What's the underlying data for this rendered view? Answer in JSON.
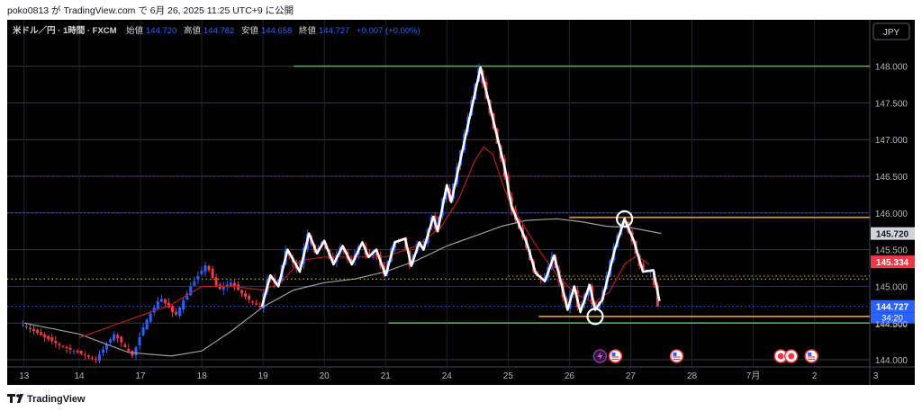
{
  "header": {
    "publish_line": "poko0813 が TradingView.com で 6月 26, 2025 11:25 UTC+9 に公開",
    "symbol": "米ドル／円 · 1時間 · FXCM",
    "open_label": "始値",
    "open": "144.720",
    "high_label": "高値",
    "high": "144.782",
    "low_label": "安値",
    "low": "144.658",
    "close_label": "終値",
    "close": "144.727",
    "change": "+0.007 (+0.00%)"
  },
  "currency_button": "JPY",
  "footer": {
    "brand": "TradingView"
  },
  "chart_data": {
    "type": "candlestick",
    "ylim": [
      143.99,
      148.08
    ],
    "y_ticks": [
      "144.000",
      "144.500",
      "145.000",
      "145.500",
      "146.000",
      "146.500",
      "147.000",
      "147.500",
      "148.000"
    ],
    "x_ticks": [
      {
        "label": "13",
        "x": -0.9
      },
      {
        "label": "14",
        "x": 0
      },
      {
        "label": "17",
        "x": 1
      },
      {
        "label": "18",
        "x": 2
      },
      {
        "label": "19",
        "x": 3
      },
      {
        "label": "20",
        "x": 4
      },
      {
        "label": "21",
        "x": 5
      },
      {
        "label": "24",
        "x": 6
      },
      {
        "label": "25",
        "x": 7
      },
      {
        "label": "26",
        "x": 8
      },
      {
        "label": "27",
        "x": 9
      },
      {
        "label": "28",
        "x": 10
      },
      {
        "label": "7月",
        "x": 11
      },
      {
        "label": "2",
        "x": 12
      },
      {
        "label": "3",
        "x": 13
      }
    ],
    "price_labels": [
      {
        "value": 145.72,
        "text": "145.720",
        "bg": "#d1d4dc",
        "fg": "#131722"
      },
      {
        "value": 145.334,
        "text": "145.334",
        "bg": "#f23645",
        "fg": "#ffffff"
      },
      {
        "value": 144.727,
        "text": "144.727",
        "bg": "#2962ff",
        "fg": "#ffffff"
      }
    ],
    "countdown": "34:20",
    "overlay_price_tail": "144.500",
    "horizontal_lines": [
      {
        "name": "green-top",
        "value": 148.0,
        "x_from": 3.5,
        "color": "#4caf50",
        "style": "solid"
      },
      {
        "name": "purple-dotted",
        "value": 146.5,
        "x_from": -1,
        "color": "#9c27b0",
        "style": "dotted"
      },
      {
        "name": "blue-dotted",
        "value": 146.0,
        "x_from": -1,
        "color": "#2962ff",
        "style": "dotted"
      },
      {
        "name": "orange-right",
        "value": 145.94,
        "x_from": 8.0,
        "color": "#ff9800",
        "style": "solid"
      },
      {
        "name": "yellow-dotted",
        "value": 145.1,
        "x_from": -1,
        "color": "#cddc39",
        "style": "dotted"
      },
      {
        "name": "orange-dotted",
        "value": 145.14,
        "x_from": 7.0,
        "color": "#ff9800",
        "style": "dotted"
      },
      {
        "name": "blue-last",
        "value": 144.727,
        "x_from": -1,
        "color": "#2962ff",
        "style": "dotted"
      },
      {
        "name": "orange-low",
        "value": 144.59,
        "x_from": 7.5,
        "color": "#ff9800",
        "style": "solid"
      },
      {
        "name": "green-low",
        "value": 144.5,
        "x_from": 5.05,
        "color": "#4caf50",
        "style": "solid"
      }
    ],
    "zigzag": [
      {
        "x": 2.98,
        "y": 144.72
      },
      {
        "x": 3.12,
        "y": 145.15
      },
      {
        "x": 3.25,
        "y": 145.0
      },
      {
        "x": 3.4,
        "y": 145.5
      },
      {
        "x": 3.6,
        "y": 145.2
      },
      {
        "x": 3.75,
        "y": 145.72
      },
      {
        "x": 3.88,
        "y": 145.45
      },
      {
        "x": 4.0,
        "y": 145.62
      },
      {
        "x": 4.15,
        "y": 145.3
      },
      {
        "x": 4.3,
        "y": 145.55
      },
      {
        "x": 4.45,
        "y": 145.3
      },
      {
        "x": 4.62,
        "y": 145.6
      },
      {
        "x": 4.72,
        "y": 145.4
      },
      {
        "x": 4.85,
        "y": 145.5
      },
      {
        "x": 5.0,
        "y": 145.15
      },
      {
        "x": 5.15,
        "y": 145.6
      },
      {
        "x": 5.32,
        "y": 145.65
      },
      {
        "x": 5.42,
        "y": 145.28
      },
      {
        "x": 5.55,
        "y": 145.6
      },
      {
        "x": 5.62,
        "y": 145.5
      },
      {
        "x": 5.78,
        "y": 145.95
      },
      {
        "x": 5.85,
        "y": 145.75
      },
      {
        "x": 6.0,
        "y": 146.38
      },
      {
        "x": 6.07,
        "y": 146.15
      },
      {
        "x": 6.55,
        "y": 147.98
      },
      {
        "x": 6.95,
        "y": 146.6
      },
      {
        "x": 7.05,
        "y": 146.1
      },
      {
        "x": 7.3,
        "y": 145.6
      },
      {
        "x": 7.45,
        "y": 145.18
      },
      {
        "x": 7.6,
        "y": 145.07
      },
      {
        "x": 7.75,
        "y": 145.42
      },
      {
        "x": 7.88,
        "y": 145.0
      },
      {
        "x": 7.97,
        "y": 144.68
      },
      {
        "x": 8.08,
        "y": 145.0
      },
      {
        "x": 8.18,
        "y": 144.65
      },
      {
        "x": 8.33,
        "y": 145.02
      },
      {
        "x": 8.42,
        "y": 144.68
      },
      {
        "x": 8.54,
        "y": 144.82
      },
      {
        "x": 8.74,
        "y": 145.5
      },
      {
        "x": 8.9,
        "y": 145.92
      },
      {
        "x": 9.05,
        "y": 145.62
      },
      {
        "x": 9.2,
        "y": 145.2
      },
      {
        "x": 9.37,
        "y": 145.22
      },
      {
        "x": 9.47,
        "y": 144.8
      }
    ],
    "circles": [
      {
        "x": 8.42,
        "y": 144.59
      },
      {
        "x": 8.9,
        "y": 145.92
      }
    ],
    "event_icons": [
      {
        "x": 8.5,
        "kind": "lightning"
      },
      {
        "x": 8.75,
        "kind": "flag"
      },
      {
        "x": 9.75,
        "kind": "flag"
      },
      {
        "x": 11.45,
        "kind": "target"
      },
      {
        "x": 11.62,
        "kind": "target"
      },
      {
        "x": 11.95,
        "kind": "flag"
      }
    ],
    "ma_fast": [
      {
        "x": 0.0,
        "y": 144.3
      },
      {
        "x": 0.5,
        "y": 144.45
      },
      {
        "x": 1.0,
        "y": 144.6
      },
      {
        "x": 1.5,
        "y": 144.75
      },
      {
        "x": 2.0,
        "y": 145.0
      },
      {
        "x": 2.5,
        "y": 145.0
      },
      {
        "x": 3.0,
        "y": 144.95
      },
      {
        "x": 3.3,
        "y": 145.05
      },
      {
        "x": 3.6,
        "y": 145.35
      },
      {
        "x": 4.0,
        "y": 145.4
      },
      {
        "x": 4.5,
        "y": 145.4
      },
      {
        "x": 5.0,
        "y": 145.4
      },
      {
        "x": 5.5,
        "y": 145.55
      },
      {
        "x": 5.9,
        "y": 145.8
      },
      {
        "x": 6.2,
        "y": 146.2
      },
      {
        "x": 6.45,
        "y": 146.7
      },
      {
        "x": 6.6,
        "y": 146.9
      },
      {
        "x": 6.75,
        "y": 146.8
      },
      {
        "x": 6.95,
        "y": 146.3
      },
      {
        "x": 7.2,
        "y": 145.9
      },
      {
        "x": 7.5,
        "y": 145.5
      },
      {
        "x": 7.8,
        "y": 145.15
      },
      {
        "x": 8.1,
        "y": 144.9
      },
      {
        "x": 8.4,
        "y": 144.78
      },
      {
        "x": 8.65,
        "y": 144.92
      },
      {
        "x": 8.9,
        "y": 145.3
      },
      {
        "x": 9.1,
        "y": 145.42
      },
      {
        "x": 9.3,
        "y": 145.3
      }
    ],
    "ma_slow": [
      {
        "x": -0.9,
        "y": 144.5
      },
      {
        "x": 0.0,
        "y": 144.35
      },
      {
        "x": 0.8,
        "y": 144.1
      },
      {
        "x": 1.5,
        "y": 144.05
      },
      {
        "x": 2.0,
        "y": 144.12
      },
      {
        "x": 2.5,
        "y": 144.4
      },
      {
        "x": 3.0,
        "y": 144.72
      },
      {
        "x": 3.5,
        "y": 144.95
      },
      {
        "x": 4.0,
        "y": 145.05
      },
      {
        "x": 4.5,
        "y": 145.1
      },
      {
        "x": 5.0,
        "y": 145.2
      },
      {
        "x": 5.5,
        "y": 145.35
      },
      {
        "x": 6.0,
        "y": 145.55
      },
      {
        "x": 6.5,
        "y": 145.7
      },
      {
        "x": 6.9,
        "y": 145.82
      },
      {
        "x": 7.3,
        "y": 145.9
      },
      {
        "x": 7.8,
        "y": 145.92
      },
      {
        "x": 8.2,
        "y": 145.88
      },
      {
        "x": 8.6,
        "y": 145.82
      },
      {
        "x": 9.0,
        "y": 145.8
      },
      {
        "x": 9.5,
        "y": 145.72
      }
    ],
    "price_path": [
      {
        "x": -0.95,
        "y": 144.5
      },
      {
        "x": -0.3,
        "y": 144.2
      },
      {
        "x": 0.0,
        "y": 144.1
      },
      {
        "x": 0.3,
        "y": 144.0
      },
      {
        "x": 0.6,
        "y": 144.35
      },
      {
        "x": 0.9,
        "y": 144.05
      },
      {
        "x": 1.1,
        "y": 144.5
      },
      {
        "x": 1.35,
        "y": 144.85
      },
      {
        "x": 1.6,
        "y": 144.6
      },
      {
        "x": 1.85,
        "y": 145.0
      },
      {
        "x": 2.1,
        "y": 145.3
      },
      {
        "x": 2.3,
        "y": 144.95
      },
      {
        "x": 2.5,
        "y": 145.05
      },
      {
        "x": 2.75,
        "y": 144.85
      },
      {
        "x": 2.98,
        "y": 144.72
      },
      {
        "x": 3.12,
        "y": 145.15
      },
      {
        "x": 3.25,
        "y": 145.0
      },
      {
        "x": 3.4,
        "y": 145.5
      },
      {
        "x": 3.6,
        "y": 145.2
      },
      {
        "x": 3.75,
        "y": 145.72
      },
      {
        "x": 3.88,
        "y": 145.45
      },
      {
        "x": 4.0,
        "y": 145.62
      },
      {
        "x": 4.15,
        "y": 145.3
      },
      {
        "x": 4.3,
        "y": 145.55
      },
      {
        "x": 4.45,
        "y": 145.3
      },
      {
        "x": 4.62,
        "y": 145.6
      },
      {
        "x": 4.72,
        "y": 145.4
      },
      {
        "x": 4.85,
        "y": 145.5
      },
      {
        "x": 5.0,
        "y": 145.15
      },
      {
        "x": 5.15,
        "y": 145.6
      },
      {
        "x": 5.32,
        "y": 145.65
      },
      {
        "x": 5.42,
        "y": 145.28
      },
      {
        "x": 5.55,
        "y": 145.6
      },
      {
        "x": 5.62,
        "y": 145.5
      },
      {
        "x": 5.78,
        "y": 145.95
      },
      {
        "x": 5.85,
        "y": 145.75
      },
      {
        "x": 6.0,
        "y": 146.38
      },
      {
        "x": 6.07,
        "y": 146.15
      },
      {
        "x": 6.55,
        "y": 147.98
      },
      {
        "x": 6.95,
        "y": 146.6
      },
      {
        "x": 7.05,
        "y": 146.1
      },
      {
        "x": 7.3,
        "y": 145.6
      },
      {
        "x": 7.45,
        "y": 145.18
      },
      {
        "x": 7.6,
        "y": 145.07
      },
      {
        "x": 7.75,
        "y": 145.42
      },
      {
        "x": 7.88,
        "y": 145.0
      },
      {
        "x": 7.97,
        "y": 144.68
      },
      {
        "x": 8.08,
        "y": 145.0
      },
      {
        "x": 8.18,
        "y": 144.65
      },
      {
        "x": 8.33,
        "y": 145.02
      },
      {
        "x": 8.42,
        "y": 144.68
      },
      {
        "x": 8.54,
        "y": 144.82
      },
      {
        "x": 8.74,
        "y": 145.5
      },
      {
        "x": 8.9,
        "y": 145.92
      },
      {
        "x": 9.05,
        "y": 145.62
      },
      {
        "x": 9.2,
        "y": 145.2
      },
      {
        "x": 9.37,
        "y": 145.22
      },
      {
        "x": 9.47,
        "y": 144.73
      }
    ],
    "candle_count": 175,
    "colors": {
      "background": "#000000",
      "grid": "#2a2e39",
      "text": "#b2b5be",
      "up": "#2962ff",
      "down": "#f23645",
      "zigzag": "#ffffff",
      "ma_fast": "#b71c1c",
      "ma_slow": "#9e9e9e",
      "accent": "#2962ff"
    }
  }
}
